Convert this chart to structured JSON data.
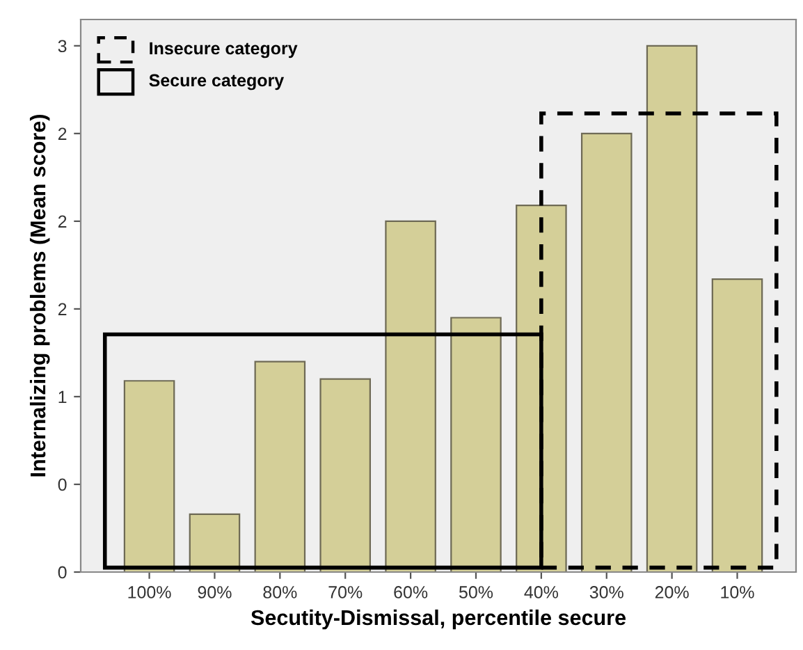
{
  "chart_data": {
    "type": "bar",
    "xlabel": "Secutity-Dismissal, percentile secure",
    "ylabel": "Internalizing problems (Mean score)",
    "categories": [
      "100%",
      "90%",
      "80%",
      "70%",
      "60%",
      "50%",
      "40%",
      "30%",
      "20%",
      "10%"
    ],
    "values": [
      1.09,
      0.33,
      1.2,
      1.1,
      2.0,
      1.45,
      2.09,
      2.5,
      3.0,
      1.67
    ],
    "color": "#d4cf98",
    "ylim": [
      0,
      3.15
    ],
    "yticks": [
      0,
      {
        "value": 0.5,
        "label": "0"
      },
      {
        "value": 1.0,
        "label": "1"
      },
      {
        "value": 1.5,
        "label": "2"
      },
      {
        "value": 2.0,
        "label": "2"
      },
      {
        "value": 2.5,
        "label": "2"
      },
      {
        "value": 3.0,
        "label": "3"
      }
    ],
    "annotations": [
      "Insecure category",
      "Secure category"
    ],
    "grid": false
  }
}
